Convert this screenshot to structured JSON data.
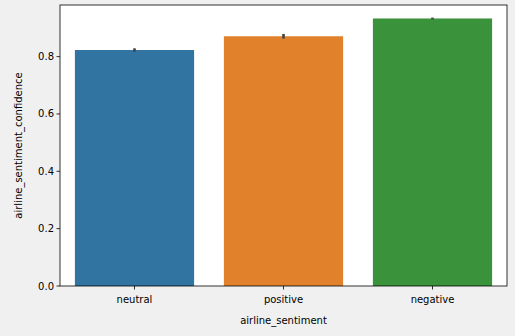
{
  "chart_data": {
    "type": "bar",
    "categories": [
      "neutral",
      "positive",
      "negative"
    ],
    "values": [
      0.823,
      0.871,
      0.933
    ],
    "errors": [
      0.006,
      0.008,
      0.003
    ],
    "colors": [
      "#3274a1",
      "#e1812c",
      "#3a923a"
    ],
    "xlabel": "airline_sentiment",
    "ylabel": "airline_sentiment_confidence",
    "ylim": [
      0,
      0.98
    ],
    "yticks": [
      {
        "value": 0,
        "label": "0.0"
      },
      {
        "value": 0.2,
        "label": "0.2"
      },
      {
        "value": 0.4,
        "label": "0.4"
      },
      {
        "value": 0.6,
        "label": "0.6"
      },
      {
        "value": 0.8,
        "label": "0.8"
      }
    ]
  }
}
